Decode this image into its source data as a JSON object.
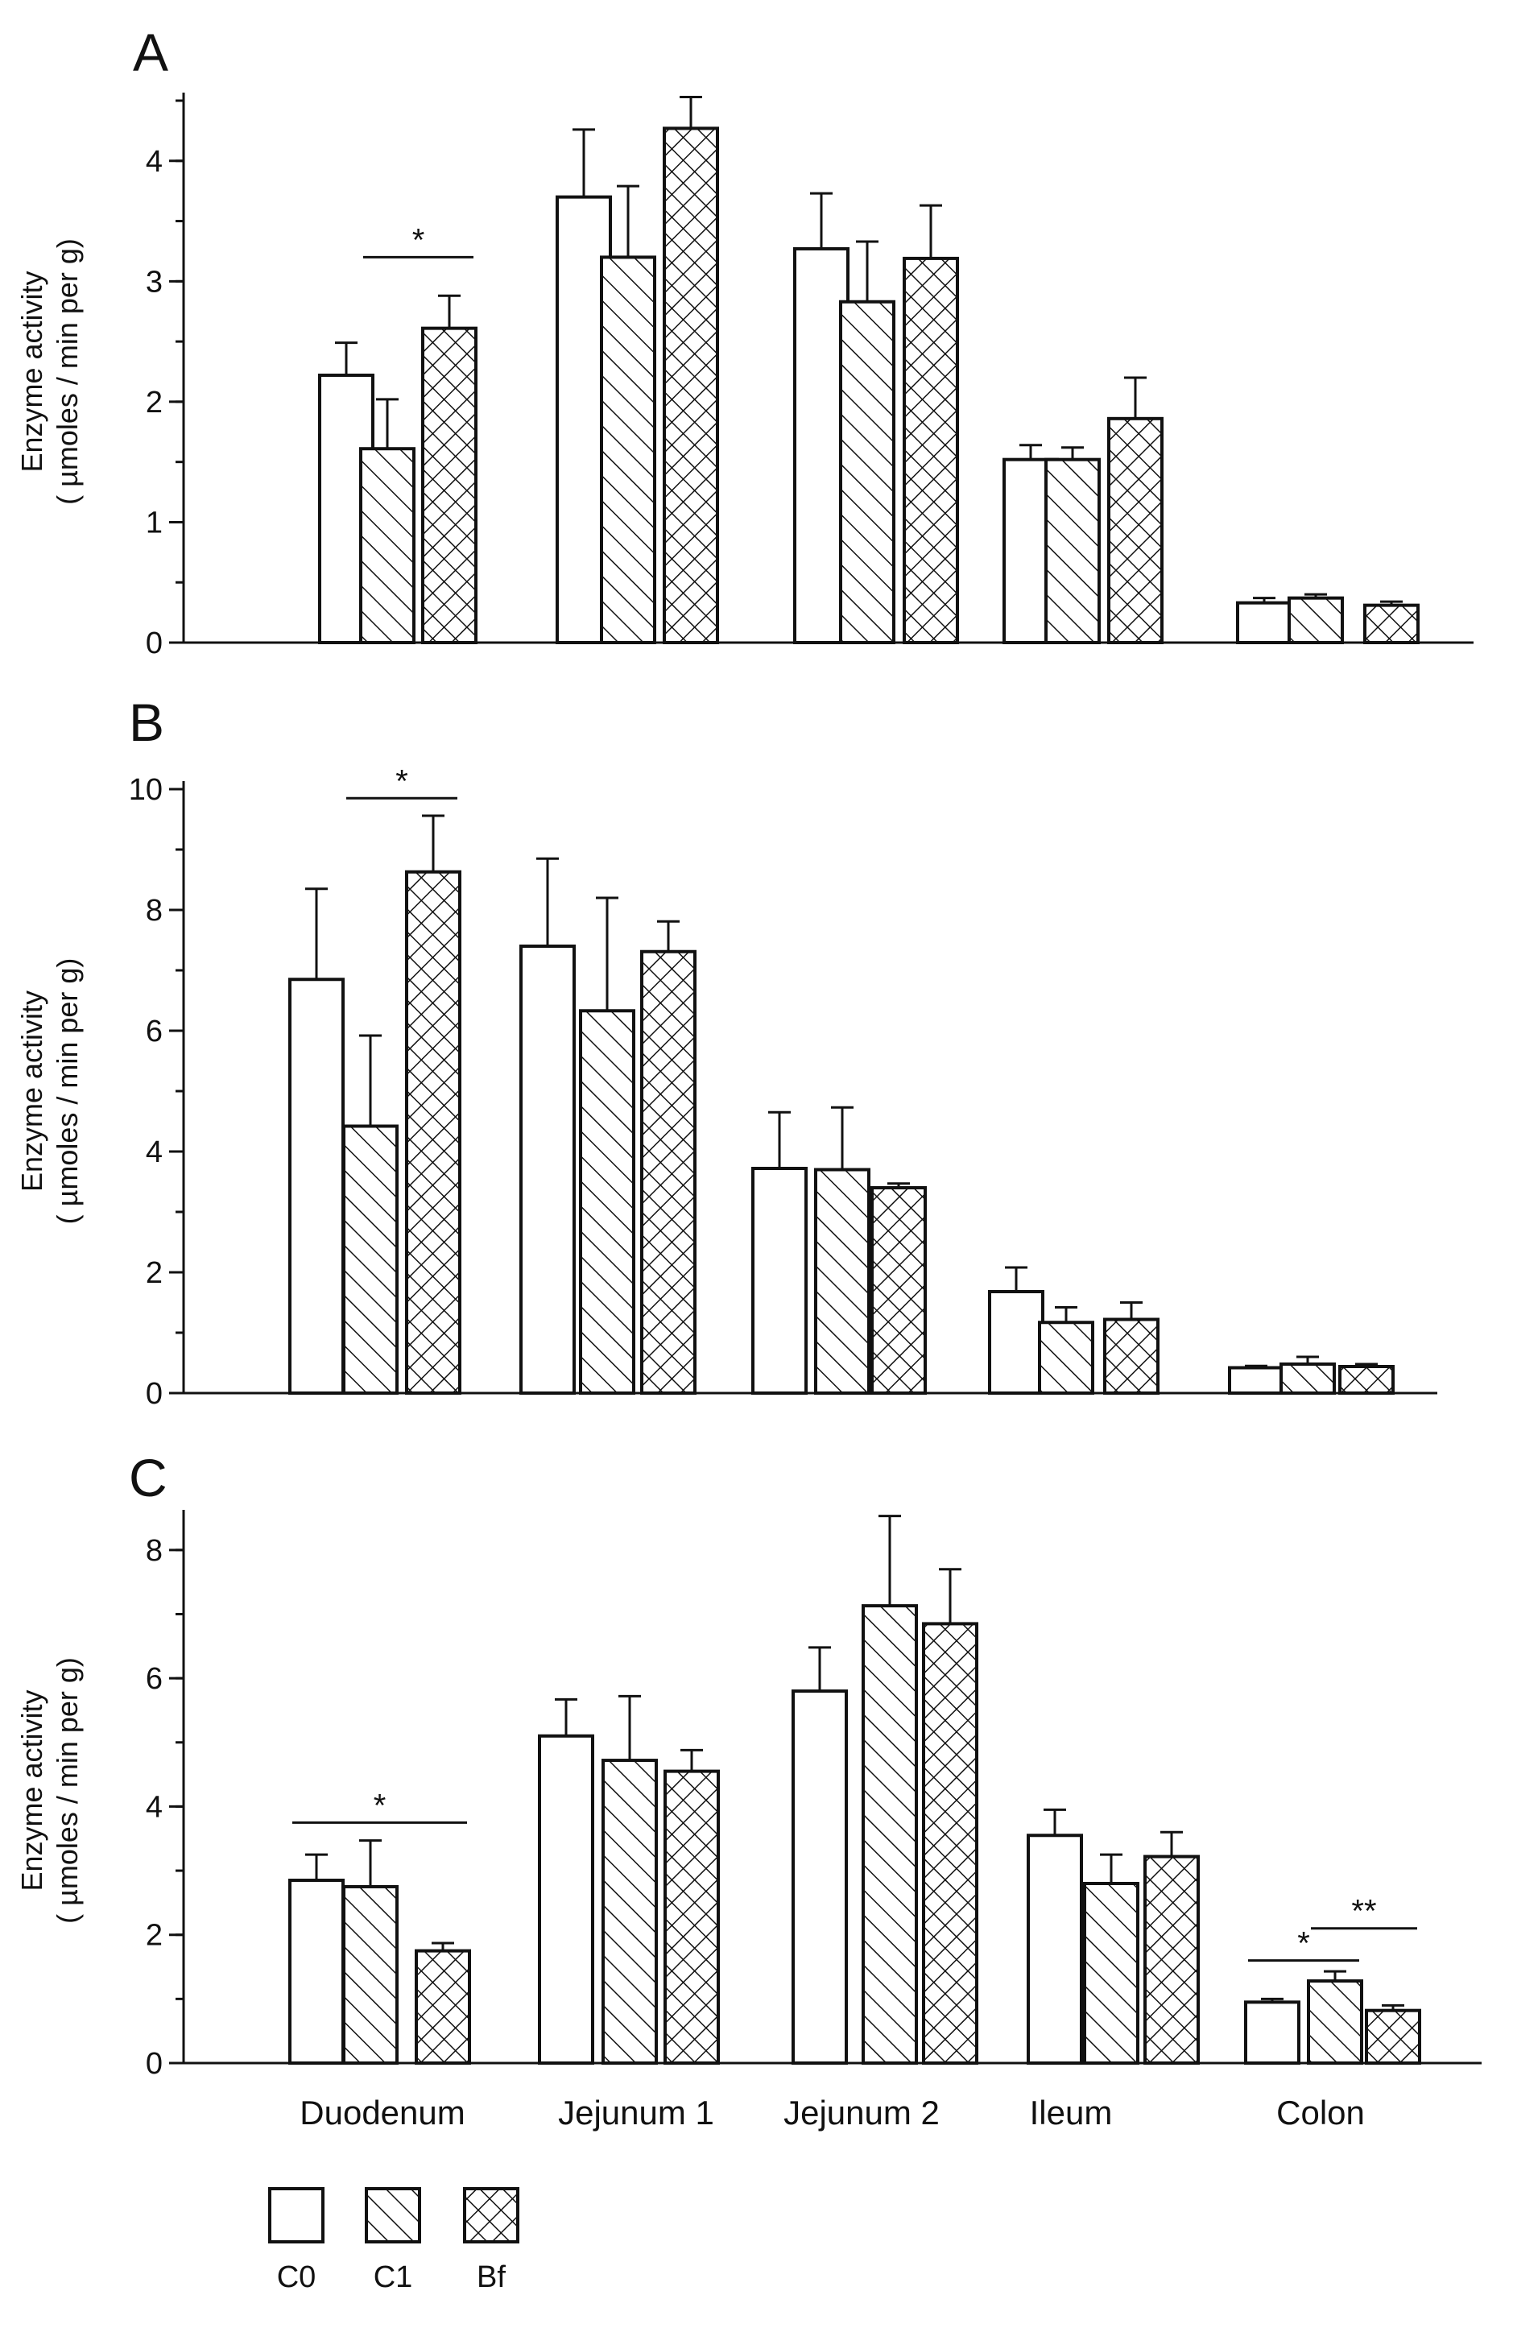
{
  "legend": [
    {
      "key": "C0",
      "label": "C0",
      "pattern": "none"
    },
    {
      "key": "C1",
      "label": "C1",
      "pattern": "diagonal"
    },
    {
      "key": "Bf",
      "label": "Bf",
      "pattern": "crosshatch"
    }
  ],
  "colors": {
    "stroke": "#111111",
    "fill": "#ffffff"
  },
  "chart_data": [
    {
      "panel": "A",
      "type": "bar",
      "ylabel": [
        "Enzyme activity",
        "( µmoles / min per g)"
      ],
      "ylim": [
        0,
        4.5
      ],
      "yticks": [
        0,
        1,
        2,
        3,
        4
      ],
      "ytick_labels": [
        "0",
        "1",
        "2",
        "3",
        "4"
      ],
      "minor_step": 0.5,
      "categories": [
        "Duodenum",
        "Jejunum 1",
        "Jejunum 2",
        "Ileum",
        "Colon"
      ],
      "show_category_labels": false,
      "series": [
        {
          "name": "C0",
          "values": [
            2.22,
            3.7,
            3.27,
            1.52,
            0.33
          ],
          "errors": [
            0.27,
            0.56,
            0.46,
            0.12,
            0.04
          ]
        },
        {
          "name": "C1",
          "values": [
            1.61,
            3.2,
            2.83,
            1.52,
            0.37
          ],
          "errors": [
            0.41,
            0.59,
            0.5,
            0.1,
            0.03
          ]
        },
        {
          "name": "Bf",
          "values": [
            2.61,
            4.27,
            3.19,
            1.86,
            0.31
          ],
          "errors": [
            0.27,
            0.26,
            0.44,
            0.34,
            0.03
          ]
        }
      ],
      "significance": [
        {
          "category": 0,
          "from": 1,
          "to": 2,
          "label": "*",
          "y": 3.2
        }
      ]
    },
    {
      "panel": "B",
      "type": "bar",
      "ylabel": [
        "Enzyme activity",
        "( µmoles / min per g)"
      ],
      "ylim": [
        0,
        10
      ],
      "yticks": [
        0,
        2,
        4,
        6,
        8,
        10
      ],
      "ytick_labels": [
        "0",
        "2",
        "4",
        "6",
        "8",
        "10"
      ],
      "minor_step": 1,
      "categories": [
        "Duodenum",
        "Jejunum 1",
        "Jejunum 2",
        "Ileum",
        "Colon"
      ],
      "show_category_labels": false,
      "series": [
        {
          "name": "C0",
          "values": [
            6.85,
            7.4,
            3.72,
            1.68,
            0.42
          ],
          "errors": [
            1.5,
            1.45,
            0.93,
            0.4,
            0.03
          ]
        },
        {
          "name": "C1",
          "values": [
            4.42,
            6.33,
            3.7,
            1.17,
            0.48
          ],
          "errors": [
            1.5,
            1.87,
            1.03,
            0.25,
            0.12
          ]
        },
        {
          "name": "Bf",
          "values": [
            8.63,
            7.31,
            3.4,
            1.22,
            0.44
          ],
          "errors": [
            0.93,
            0.5,
            0.07,
            0.28,
            0.04
          ]
        }
      ],
      "significance": [
        {
          "category": 0,
          "from": 1,
          "to": 2,
          "label": "*",
          "y": 9.85
        }
      ]
    },
    {
      "panel": "C",
      "type": "bar",
      "ylabel": [
        "Enzyme activity",
        "( µmoles / min per g)"
      ],
      "ylim": [
        0,
        8.5
      ],
      "yticks": [
        0,
        2,
        4,
        6,
        8
      ],
      "ytick_labels": [
        "0",
        "2",
        "4",
        "6",
        "8"
      ],
      "minor_step": 1,
      "categories": [
        "Duodenum",
        "Jejunum 1",
        "Jejunum 2",
        "Ileum",
        "Colon"
      ],
      "show_category_labels": true,
      "series": [
        {
          "name": "C0",
          "values": [
            2.85,
            5.1,
            5.8,
            3.55,
            0.95
          ],
          "errors": [
            0.4,
            0.57,
            0.68,
            0.4,
            0.05
          ]
        },
        {
          "name": "C1",
          "values": [
            2.75,
            4.72,
            7.13,
            2.8,
            1.28
          ],
          "errors": [
            0.72,
            1.0,
            1.4,
            0.45,
            0.15
          ]
        },
        {
          "name": "Bf",
          "values": [
            1.75,
            4.55,
            6.85,
            3.22,
            0.82
          ],
          "errors": [
            0.12,
            0.33,
            0.85,
            0.38,
            0.08
          ]
        }
      ],
      "significance": [
        {
          "category": 0,
          "from": 0,
          "to": 2,
          "label": "*",
          "y": 3.75
        },
        {
          "category": 4,
          "from": 0,
          "to": 1,
          "label": "*",
          "y": 1.6
        },
        {
          "category": 4,
          "from": 1,
          "to": 2,
          "label": "**",
          "y": 2.1
        }
      ]
    }
  ]
}
